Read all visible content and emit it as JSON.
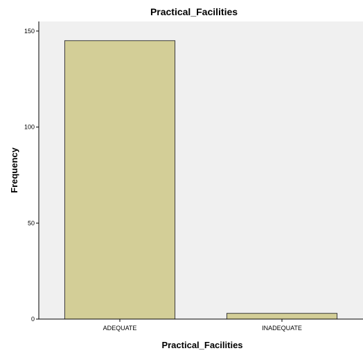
{
  "chart_data": {
    "type": "bar",
    "title": "Practical_Facilities",
    "xlabel": "Practical_Facilities",
    "ylabel": "Frequency",
    "categories": [
      "ADEQUATE",
      "INADEQUATE"
    ],
    "values": [
      145,
      3
    ],
    "ylim": [
      0,
      155
    ],
    "yticks": [
      0,
      50,
      100,
      150
    ],
    "grid": false,
    "legend": "none",
    "colors": {
      "bar_fill": "#d3ce97",
      "bar_stroke": "#3a3a3a",
      "plot_background": "#f0f0f0",
      "axis": "#000000"
    }
  }
}
